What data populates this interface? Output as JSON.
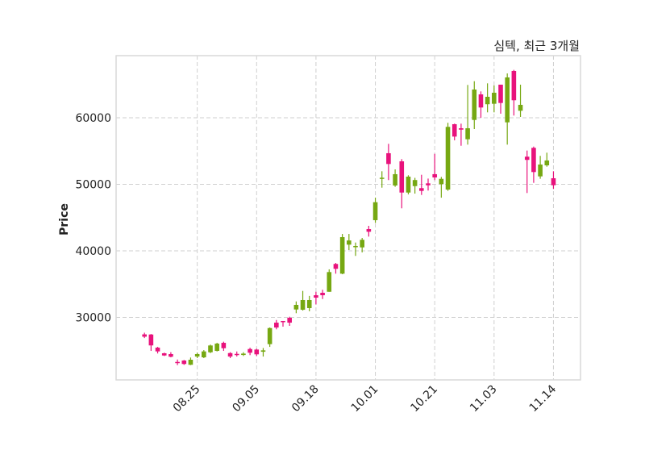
{
  "chart_data": {
    "type": "candlestick",
    "title": "심텍, 최근 3개월",
    "xlabel": "",
    "ylabel": "Price",
    "ylim": [
      20610,
      69330
    ],
    "grid": true,
    "yticks": [
      30000,
      40000,
      50000,
      60000
    ],
    "xticks": [
      {
        "index": 8,
        "label": "08.25"
      },
      {
        "index": 17,
        "label": "09.05"
      },
      {
        "index": 26,
        "label": "09.18"
      },
      {
        "index": 35,
        "label": "10.01"
      },
      {
        "index": 44,
        "label": "10.21"
      },
      {
        "index": 53,
        "label": "11.03"
      },
      {
        "index": 62,
        "label": "11.14"
      }
    ],
    "colors": {
      "up": "#76a812",
      "down": "#e8127c"
    },
    "ohlc": [
      [
        27450,
        27700,
        26900,
        27100
      ],
      [
        27430,
        27500,
        24970,
        25790
      ],
      [
        25460,
        25570,
        24580,
        24890
      ],
      [
        24610,
        24700,
        24200,
        24280
      ],
      [
        24490,
        24770,
        24000,
        24090
      ],
      [
        23310,
        23670,
        22830,
        23190
      ],
      [
        23520,
        23600,
        22870,
        23000
      ],
      [
        22880,
        23970,
        22830,
        23640
      ],
      [
        24120,
        24700,
        23880,
        24490
      ],
      [
        24000,
        25090,
        23880,
        24890
      ],
      [
        24760,
        25910,
        24640,
        25780
      ],
      [
        24970,
        26180,
        24890,
        26060
      ],
      [
        26180,
        26350,
        24970,
        25370
      ],
      [
        24640,
        24770,
        23880,
        24120
      ],
      [
        24520,
        24880,
        24120,
        24360
      ],
      [
        24360,
        24770,
        24200,
        24560
      ],
      [
        25250,
        25450,
        24330,
        24690
      ],
      [
        25170,
        25290,
        24200,
        24450
      ],
      [
        24840,
        25400,
        24120,
        25050
      ],
      [
        25980,
        28490,
        25570,
        28400
      ],
      [
        29210,
        29610,
        28210,
        28480
      ],
      [
        29460,
        29460,
        28610,
        29300
      ],
      [
        29940,
        30100,
        28730,
        29210
      ],
      [
        31190,
        32400,
        30630,
        31880
      ],
      [
        31150,
        33980,
        31030,
        32610
      ],
      [
        31400,
        33230,
        30920,
        32610
      ],
      [
        33330,
        33850,
        31960,
        32970
      ],
      [
        33700,
        34150,
        32760,
        33330
      ],
      [
        33850,
        37220,
        33850,
        36810
      ],
      [
        38030,
        38180,
        36570,
        37300
      ],
      [
        36570,
        42540,
        36490,
        42060
      ],
      [
        40930,
        42540,
        40120,
        41560
      ],
      [
        40570,
        41250,
        39240,
        40730
      ],
      [
        40520,
        41940,
        39770,
        41660
      ],
      [
        43270,
        43760,
        42140,
        42870
      ],
      [
        44610,
        47990,
        44200,
        47310
      ],
      [
        50830,
        51960,
        49490,
        50990
      ],
      [
        54670,
        56080,
        50630,
        53050
      ],
      [
        49820,
        52240,
        49620,
        51520
      ],
      [
        53450,
        53780,
        46390,
        48760
      ],
      [
        48760,
        51360,
        48480,
        51150
      ],
      [
        49730,
        50970,
        48600,
        50640
      ],
      [
        49420,
        51430,
        48400,
        49010
      ],
      [
        50140,
        50860,
        49060,
        49850
      ],
      [
        51520,
        54580,
        50630,
        51030
      ],
      [
        50020,
        51110,
        47990,
        50820
      ],
      [
        49210,
        59240,
        49010,
        58630
      ],
      [
        59030,
        59110,
        56610,
        57170
      ],
      [
        58420,
        59110,
        55790,
        58210
      ],
      [
        56770,
        64930,
        55960,
        58420
      ],
      [
        59670,
        65490,
        58300,
        64240
      ],
      [
        63510,
        63960,
        60000,
        61540
      ],
      [
        62030,
        65170,
        60810,
        63150
      ],
      [
        62100,
        64850,
        60810,
        63760
      ],
      [
        64970,
        64970,
        60610,
        62220
      ],
      [
        59310,
        66660,
        55960,
        66060
      ],
      [
        67030,
        67190,
        60330,
        62630
      ],
      [
        61050,
        64970,
        60120,
        61940
      ],
      [
        54150,
        55070,
        48690,
        53670
      ],
      [
        55480,
        55670,
        50220,
        51840
      ],
      [
        51190,
        54270,
        50830,
        52970
      ],
      [
        52850,
        54750,
        52640,
        53580
      ],
      [
        50910,
        51960,
        49300,
        49860
      ]
    ]
  }
}
